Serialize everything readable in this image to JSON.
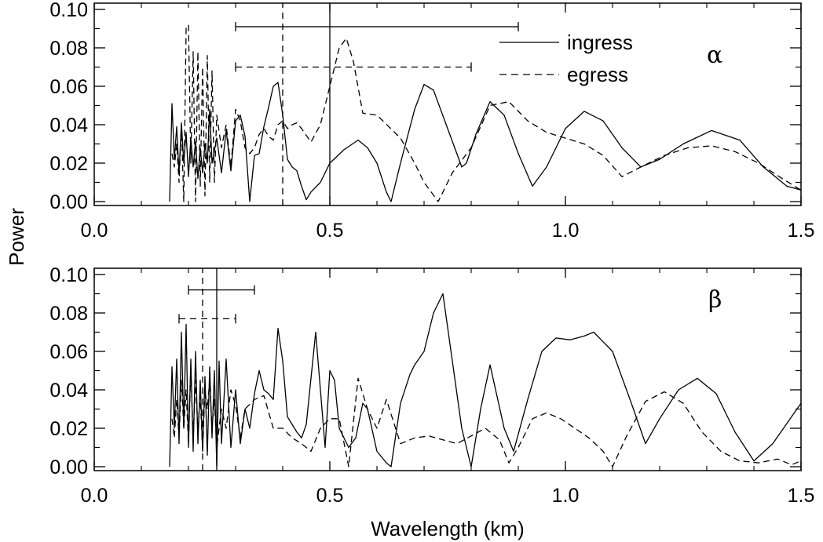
{
  "chart_data": [
    {
      "type": "line",
      "panel_label": "α",
      "xlabel": "",
      "ylabel": "Power",
      "xlim": [
        0.0,
        1.5
      ],
      "ylim": [
        0.0,
        0.1
      ],
      "xticks": [
        "0.0",
        "0.5",
        "1.0",
        "1.5"
      ],
      "yticks": [
        "0.00",
        "0.02",
        "0.04",
        "0.06",
        "0.08",
        "0.10"
      ],
      "legend": {
        "placement": "top-right",
        "entries": [
          {
            "name": "ingress",
            "style": "solid"
          },
          {
            "name": "egress",
            "style": "dashed"
          }
        ]
      },
      "series": [
        {
          "name": "ingress",
          "style": "solid",
          "x": [
            0.16,
            0.165,
            0.17,
            0.175,
            0.18,
            0.185,
            0.19,
            0.195,
            0.2,
            0.205,
            0.21,
            0.215,
            0.22,
            0.225,
            0.23,
            0.235,
            0.24,
            0.245,
            0.25,
            0.26,
            0.27,
            0.28,
            0.29,
            0.3,
            0.31,
            0.32,
            0.33,
            0.34,
            0.35,
            0.36,
            0.37,
            0.38,
            0.39,
            0.4,
            0.41,
            0.42,
            0.43,
            0.44,
            0.45,
            0.46,
            0.48,
            0.5,
            0.53,
            0.56,
            0.58,
            0.6,
            0.62,
            0.63,
            0.65,
            0.68,
            0.7,
            0.72,
            0.75,
            0.78,
            0.79,
            0.81,
            0.84,
            0.87,
            0.9,
            0.93,
            0.96,
            1.0,
            1.04,
            1.08,
            1.12,
            1.16,
            1.2,
            1.25,
            1.31,
            1.37,
            1.42,
            1.47,
            1.5
          ],
          "y": [
            0.0,
            0.051,
            0.022,
            0.039,
            0.015,
            0.041,
            0.02,
            0.036,
            0.013,
            0.033,
            0.018,
            0.031,
            0.012,
            0.028,
            0.015,
            0.03,
            0.02,
            0.048,
            0.02,
            0.033,
            0.015,
            0.037,
            0.016,
            0.042,
            0.045,
            0.034,
            0.0,
            0.024,
            0.025,
            0.039,
            0.049,
            0.06,
            0.062,
            0.045,
            0.022,
            0.018,
            0.016,
            0.008,
            0.001,
            0.005,
            0.01,
            0.02,
            0.027,
            0.032,
            0.028,
            0.02,
            0.005,
            0.0,
            0.02,
            0.048,
            0.061,
            0.058,
            0.038,
            0.018,
            0.02,
            0.035,
            0.052,
            0.045,
            0.025,
            0.008,
            0.018,
            0.038,
            0.047,
            0.042,
            0.028,
            0.018,
            0.022,
            0.03,
            0.037,
            0.032,
            0.018,
            0.008,
            0.006
          ]
        },
        {
          "name": "egress",
          "style": "dashed",
          "x": [
            0.165,
            0.17,
            0.175,
            0.18,
            0.185,
            0.19,
            0.195,
            0.2,
            0.205,
            0.21,
            0.215,
            0.22,
            0.225,
            0.23,
            0.235,
            0.24,
            0.245,
            0.25,
            0.255,
            0.26,
            0.27,
            0.28,
            0.29,
            0.3,
            0.31,
            0.32,
            0.33,
            0.34,
            0.35,
            0.36,
            0.37,
            0.38,
            0.39,
            0.4,
            0.41,
            0.42,
            0.43,
            0.44,
            0.46,
            0.48,
            0.5,
            0.52,
            0.535,
            0.55,
            0.57,
            0.6,
            0.65,
            0.68,
            0.7,
            0.73,
            0.76,
            0.8,
            0.84,
            0.88,
            0.92,
            0.96,
            1.0,
            1.04,
            1.08,
            1.12,
            1.16,
            1.21,
            1.26,
            1.31,
            1.36,
            1.41,
            1.46,
            1.5
          ],
          "y": [
            0.025,
            0.018,
            0.03,
            0.01,
            0.04,
            0.0,
            0.09,
            0.092,
            0.02,
            0.078,
            0.0,
            0.078,
            0.008,
            0.07,
            0.003,
            0.076,
            0.01,
            0.068,
            0.01,
            0.045,
            0.028,
            0.04,
            0.018,
            0.048,
            0.042,
            0.028,
            0.025,
            0.028,
            0.035,
            0.038,
            0.034,
            0.032,
            0.04,
            0.042,
            0.038,
            0.04,
            0.041,
            0.038,
            0.031,
            0.04,
            0.06,
            0.08,
            0.085,
            0.073,
            0.046,
            0.045,
            0.033,
            0.02,
            0.01,
            0.0,
            0.015,
            0.028,
            0.05,
            0.052,
            0.042,
            0.036,
            0.033,
            0.03,
            0.024,
            0.013,
            0.018,
            0.024,
            0.028,
            0.029,
            0.026,
            0.02,
            0.012,
            0.006
          ]
        }
      ],
      "annotations": {
        "ingress_marker": {
          "x": 0.5,
          "range": [
            0.3,
            0.9
          ],
          "bar_y": 0.091
        },
        "egress_marker": {
          "x": 0.4,
          "range": [
            0.3,
            0.8
          ],
          "bar_y": 0.07
        }
      }
    },
    {
      "type": "line",
      "panel_label": "β",
      "xlabel": "Wavelength (km)",
      "ylabel": "Power",
      "xlim": [
        0.0,
        1.5
      ],
      "ylim": [
        0.0,
        0.1
      ],
      "xticks": [
        "0.0",
        "0.5",
        "1.0",
        "1.5"
      ],
      "yticks": [
        "0.00",
        "0.02",
        "0.04",
        "0.06",
        "0.08",
        "0.10"
      ],
      "series": [
        {
          "name": "ingress",
          "style": "solid",
          "x": [
            0.16,
            0.165,
            0.17,
            0.175,
            0.18,
            0.185,
            0.19,
            0.195,
            0.2,
            0.205,
            0.21,
            0.215,
            0.22,
            0.225,
            0.23,
            0.235,
            0.24,
            0.245,
            0.25,
            0.255,
            0.26,
            0.265,
            0.27,
            0.28,
            0.29,
            0.3,
            0.31,
            0.32,
            0.33,
            0.34,
            0.35,
            0.36,
            0.37,
            0.38,
            0.39,
            0.4,
            0.41,
            0.42,
            0.43,
            0.44,
            0.45,
            0.47,
            0.48,
            0.49,
            0.5,
            0.51,
            0.52,
            0.54,
            0.555,
            0.57,
            0.58,
            0.6,
            0.62,
            0.63,
            0.65,
            0.67,
            0.68,
            0.7,
            0.72,
            0.74,
            0.76,
            0.78,
            0.8,
            0.82,
            0.84,
            0.87,
            0.89,
            0.92,
            0.95,
            0.98,
            1.01,
            1.04,
            1.06,
            1.1,
            1.14,
            1.17,
            1.2,
            1.24,
            1.28,
            1.32,
            1.36,
            1.4,
            1.44,
            1.48,
            1.5
          ],
          "y": [
            0.0,
            0.052,
            0.02,
            0.056,
            0.012,
            0.07,
            0.02,
            0.074,
            0.01,
            0.056,
            0.008,
            0.06,
            0.012,
            0.045,
            0.008,
            0.047,
            0.006,
            0.052,
            0.015,
            0.05,
            0.0,
            0.055,
            0.012,
            0.056,
            0.01,
            0.04,
            0.012,
            0.03,
            0.02,
            0.038,
            0.05,
            0.04,
            0.038,
            0.035,
            0.072,
            0.055,
            0.026,
            0.022,
            0.018,
            0.015,
            0.022,
            0.07,
            0.04,
            0.01,
            0.05,
            0.045,
            0.02,
            0.01,
            0.015,
            0.033,
            0.03,
            0.008,
            0.002,
            0.0,
            0.033,
            0.048,
            0.053,
            0.06,
            0.08,
            0.09,
            0.055,
            0.02,
            0.0,
            0.03,
            0.053,
            0.02,
            0.008,
            0.035,
            0.06,
            0.067,
            0.066,
            0.068,
            0.07,
            0.06,
            0.033,
            0.012,
            0.025,
            0.04,
            0.046,
            0.038,
            0.018,
            0.003,
            0.012,
            0.026,
            0.033
          ]
        },
        {
          "name": "egress",
          "style": "dashed",
          "x": [
            0.165,
            0.17,
            0.175,
            0.18,
            0.185,
            0.19,
            0.195,
            0.2,
            0.205,
            0.21,
            0.215,
            0.22,
            0.225,
            0.23,
            0.235,
            0.24,
            0.245,
            0.25,
            0.255,
            0.26,
            0.27,
            0.28,
            0.29,
            0.3,
            0.31,
            0.32,
            0.34,
            0.36,
            0.38,
            0.4,
            0.42,
            0.44,
            0.46,
            0.48,
            0.5,
            0.52,
            0.54,
            0.56,
            0.58,
            0.6,
            0.62,
            0.65,
            0.68,
            0.71,
            0.74,
            0.77,
            0.8,
            0.83,
            0.86,
            0.88,
            0.9,
            0.93,
            0.96,
            0.99,
            1.02,
            1.05,
            1.08,
            1.1,
            1.13,
            1.17,
            1.21,
            1.25,
            1.29,
            1.33,
            1.37,
            1.41,
            1.45,
            1.48,
            1.5
          ],
          "y": [
            0.025,
            0.015,
            0.035,
            0.015,
            0.045,
            0.02,
            0.04,
            0.012,
            0.05,
            0.015,
            0.045,
            0.02,
            0.037,
            0.008,
            0.04,
            0.03,
            0.045,
            0.02,
            0.035,
            0.01,
            0.03,
            0.02,
            0.04,
            0.032,
            0.015,
            0.03,
            0.035,
            0.037,
            0.02,
            0.02,
            0.015,
            0.012,
            0.008,
            0.02,
            0.025,
            0.025,
            0.0,
            0.046,
            0.03,
            0.02,
            0.035,
            0.012,
            0.015,
            0.016,
            0.014,
            0.012,
            0.016,
            0.02,
            0.014,
            0.002,
            0.01,
            0.025,
            0.028,
            0.025,
            0.02,
            0.015,
            0.008,
            0.0,
            0.016,
            0.034,
            0.039,
            0.033,
            0.018,
            0.008,
            0.003,
            0.002,
            0.004,
            0.001,
            0.003
          ]
        }
      ],
      "annotations": {
        "ingress_marker": {
          "x": 0.26,
          "range": [
            0.2,
            0.34
          ],
          "bar_y": 0.092
        },
        "egress_marker": {
          "x": 0.23,
          "range": [
            0.18,
            0.3
          ],
          "bar_y": 0.077
        }
      }
    }
  ]
}
